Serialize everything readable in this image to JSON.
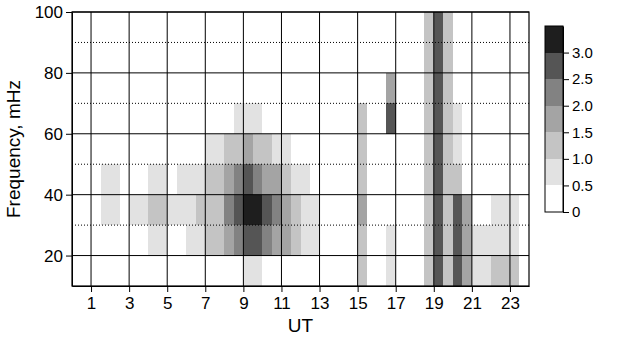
{
  "chart_data": {
    "type": "heatmap",
    "x_label": "UT",
    "y_label": "Frequency, mHz",
    "xlim": [
      0,
      24
    ],
    "ylim": [
      10,
      100
    ],
    "xticks": [
      1,
      3,
      5,
      7,
      9,
      11,
      13,
      15,
      17,
      19,
      21,
      23
    ],
    "yticks": [
      20,
      40,
      60,
      80,
      100
    ],
    "yminor": [
      30,
      50,
      70,
      90
    ],
    "grid": true,
    "x_edges": [
      0,
      0.5,
      1,
      1.5,
      2,
      2.5,
      3,
      3.5,
      4,
      4.5,
      5,
      5.5,
      6,
      6.5,
      7,
      7.5,
      8,
      8.5,
      9,
      9.5,
      10,
      10.5,
      11,
      11.5,
      12,
      12.5,
      13,
      13.5,
      14,
      14.5,
      15,
      15.5,
      16,
      16.5,
      17,
      17.5,
      18,
      18.5,
      19,
      19.5,
      20,
      20.5,
      21,
      21.5,
      22,
      22.5,
      23,
      23.5,
      24
    ],
    "y_edges": [
      10,
      20,
      30,
      40,
      50,
      60,
      70,
      80,
      90,
      100
    ],
    "z": [
      [
        0,
        0,
        0,
        0,
        0,
        0,
        0,
        0,
        0,
        0,
        0,
        0,
        0,
        0,
        0,
        0,
        0,
        0,
        0.5,
        0.5,
        0,
        0,
        0,
        0,
        0,
        0,
        0,
        0,
        0,
        0,
        1,
        0,
        0,
        0.8,
        0,
        0,
        0,
        1,
        2.5,
        1,
        2.5,
        1.5,
        0.8,
        0.8,
        1,
        1,
        1,
        0
      ],
      [
        0,
        0,
        0,
        0,
        0,
        0,
        0,
        0,
        0.8,
        0.8,
        0,
        0,
        0.7,
        0.8,
        1,
        1.2,
        1.5,
        2,
        2.5,
        2.5,
        2,
        1.8,
        1.5,
        1,
        0.7,
        0.5,
        0,
        0,
        0,
        0,
        1.2,
        0,
        0,
        0.8,
        0,
        0,
        0,
        1,
        2.5,
        1,
        2.5,
        1.5,
        0.6,
        0.6,
        0.8,
        0.8,
        0.8,
        0
      ],
      [
        0,
        0,
        0,
        0.5,
        0.5,
        0,
        0.6,
        0.6,
        1,
        1,
        0.5,
        0.6,
        0.7,
        1,
        1,
        1.2,
        2,
        2.5,
        3.2,
        3,
        2.5,
        2,
        1.5,
        1.2,
        0.8,
        0.5,
        0,
        0,
        0,
        0,
        1.5,
        0,
        0,
        0,
        0,
        0,
        0,
        1,
        2.5,
        1,
        2.5,
        1.5,
        0,
        0,
        0.5,
        0.5,
        0.5,
        0
      ],
      [
        0,
        0,
        0,
        0.5,
        0.5,
        0,
        0,
        0,
        0.5,
        0.5,
        0,
        0.5,
        0.7,
        0.8,
        1,
        1.2,
        1.8,
        2,
        2.5,
        2.2,
        1.8,
        1.5,
        1,
        0.8,
        0.5,
        0,
        0,
        0,
        0,
        0,
        1.2,
        0,
        0,
        0,
        0,
        0,
        0,
        1,
        2.5,
        1,
        1,
        0,
        0,
        0,
        0,
        0,
        0,
        0
      ],
      [
        0,
        0,
        0,
        0,
        0,
        0,
        0,
        0,
        0,
        0,
        0,
        0,
        0,
        0.3,
        0.5,
        0.8,
        1,
        1.2,
        1.5,
        1.2,
        1,
        0.7,
        0.5,
        0,
        0,
        0,
        0,
        0,
        0,
        0,
        1.2,
        0,
        0,
        0,
        0,
        0,
        0,
        1,
        2.5,
        1,
        0.5,
        0,
        0,
        0,
        0,
        0,
        0,
        0
      ],
      [
        0,
        0,
        0,
        0,
        0,
        0,
        0,
        0,
        0,
        0,
        0,
        0,
        0,
        0,
        0,
        0,
        0,
        0.5,
        0.7,
        0.5,
        0,
        0,
        0,
        0,
        0,
        0,
        0,
        0,
        0,
        0,
        1,
        0,
        0,
        2.5,
        0,
        0,
        0,
        1,
        2.5,
        1,
        0.5,
        0,
        0,
        0,
        0,
        0,
        0,
        0
      ],
      [
        0,
        0,
        0,
        0,
        0,
        0,
        0,
        0,
        0,
        0,
        0,
        0,
        0,
        0,
        0,
        0,
        0,
        0,
        0,
        0,
        0,
        0,
        0,
        0,
        0,
        0,
        0,
        0,
        0,
        0,
        0,
        0,
        0,
        1.5,
        0,
        0,
        0,
        1,
        2.5,
        1,
        0,
        0,
        0,
        0,
        0,
        0,
        0,
        0
      ],
      [
        0,
        0,
        0,
        0,
        0,
        0,
        0,
        0,
        0,
        0,
        0,
        0,
        0,
        0,
        0,
        0,
        0,
        0,
        0,
        0,
        0,
        0,
        0,
        0,
        0,
        0,
        0,
        0,
        0,
        0,
        0,
        0,
        0,
        0,
        0,
        0,
        0,
        1,
        2.5,
        1,
        0,
        0,
        0,
        0,
        0,
        0,
        0,
        0
      ],
      [
        0,
        0,
        0,
        0,
        0,
        0,
        0,
        0,
        0,
        0,
        0,
        0,
        0,
        0,
        0,
        0,
        0,
        0,
        0,
        0,
        0,
        0,
        0,
        0,
        0,
        0,
        0,
        0,
        0,
        0,
        0,
        0,
        0,
        0,
        0,
        0,
        0,
        1,
        2.5,
        1,
        0,
        0,
        0,
        0,
        0,
        0,
        0,
        0
      ]
    ],
    "colorbar_lim": [
      0,
      3.5
    ],
    "colorbar_ticks": [
      0,
      0.5,
      {
        "value": 1,
        "label": "1.0"
      },
      1.5,
      {
        "value": 2,
        "label": "2.0"
      },
      2.5,
      {
        "value": 3,
        "label": "3.0"
      }
    ]
  }
}
